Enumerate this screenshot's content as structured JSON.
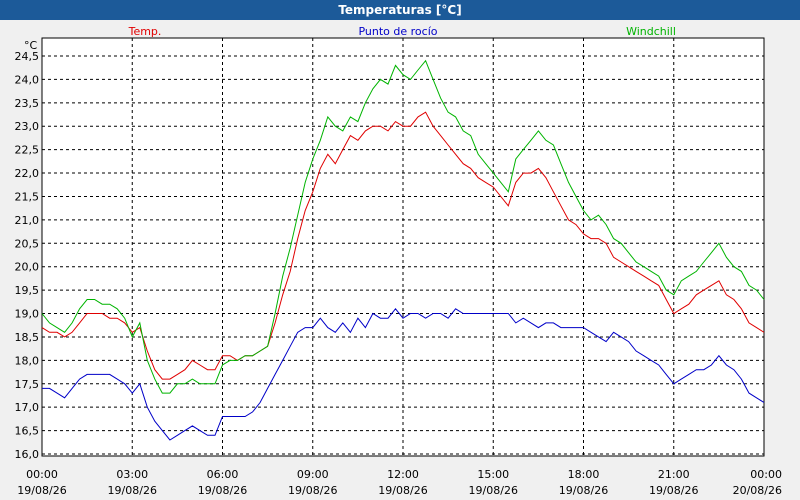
{
  "window": {
    "title": "Temperaturas [°C]"
  },
  "chart_data": {
    "type": "line",
    "title": "Temperaturas [°C]",
    "unit_label": "°C",
    "ylim": [
      16.0,
      24.5
    ],
    "yticks": [
      "24,5",
      "24,0",
      "23,5",
      "23,0",
      "22,5",
      "22,0",
      "21,5",
      "21,0",
      "20,5",
      "20,0",
      "19,5",
      "19,0",
      "18,5",
      "18,0",
      "17,5",
      "17,0",
      "16,5",
      "16,0"
    ],
    "ytick_values": [
      24.5,
      24.0,
      23.5,
      23.0,
      22.5,
      22.0,
      21.5,
      21.0,
      20.5,
      20.0,
      19.5,
      19.0,
      18.5,
      18.0,
      17.5,
      17.0,
      16.5,
      16.0
    ],
    "xlim": [
      0,
      24
    ],
    "xticks": [
      {
        "hour": 0,
        "time": "00:00",
        "date": "19/08/26"
      },
      {
        "hour": 3,
        "time": "03:00",
        "date": "19/08/26"
      },
      {
        "hour": 6,
        "time": "06:00",
        "date": "19/08/26"
      },
      {
        "hour": 9,
        "time": "09:00",
        "date": "19/08/26"
      },
      {
        "hour": 12,
        "time": "12:00",
        "date": "19/08/26"
      },
      {
        "hour": 15,
        "time": "15:00",
        "date": "19/08/26"
      },
      {
        "hour": 18,
        "time": "18:00",
        "date": "19/08/26"
      },
      {
        "hour": 21,
        "time": "21:00",
        "date": "19/08/26"
      },
      {
        "hour": 24,
        "time": "00:00",
        "date": "20/08/26"
      }
    ],
    "grid": true,
    "legend_position": "top",
    "series": [
      {
        "name": "Temp.",
        "color": "#e00000",
        "x": [
          0,
          0.25,
          0.5,
          0.75,
          1.0,
          1.25,
          1.5,
          1.75,
          2.0,
          2.25,
          2.5,
          2.75,
          3.0,
          3.25,
          3.5,
          3.75,
          4.0,
          4.25,
          4.5,
          4.75,
          5.0,
          5.25,
          5.5,
          5.75,
          6.0,
          6.25,
          6.5,
          6.75,
          7.0,
          7.25,
          7.5,
          7.75,
          8.0,
          8.25,
          8.5,
          8.75,
          9.0,
          9.25,
          9.5,
          9.75,
          10.0,
          10.25,
          10.5,
          10.75,
          11.0,
          11.25,
          11.5,
          11.75,
          12.0,
          12.25,
          12.5,
          12.75,
          13.0,
          13.25,
          13.5,
          13.75,
          14.0,
          14.25,
          14.5,
          14.75,
          15.0,
          15.25,
          15.5,
          15.75,
          16.0,
          16.25,
          16.5,
          16.75,
          17.0,
          17.25,
          17.5,
          17.75,
          18.0,
          18.25,
          18.5,
          18.75,
          19.0,
          19.25,
          19.5,
          19.75,
          20.0,
          20.25,
          20.5,
          20.75,
          21.0,
          21.25,
          21.5,
          21.75,
          22.0,
          22.25,
          22.5,
          22.75,
          23.0,
          23.25,
          23.5,
          23.75,
          24.0
        ],
        "values": [
          18.7,
          18.6,
          18.6,
          18.5,
          18.6,
          18.8,
          19.0,
          19.0,
          19.0,
          18.9,
          18.9,
          18.8,
          18.6,
          18.7,
          18.2,
          17.8,
          17.6,
          17.6,
          17.7,
          17.8,
          18.0,
          17.9,
          17.8,
          17.8,
          18.1,
          18.1,
          18.0,
          18.1,
          18.1,
          18.2,
          18.3,
          18.8,
          19.4,
          19.9,
          20.6,
          21.2,
          21.6,
          22.1,
          22.4,
          22.2,
          22.5,
          22.8,
          22.7,
          22.9,
          23.0,
          23.0,
          22.9,
          23.1,
          23.0,
          23.0,
          23.2,
          23.3,
          23.0,
          22.8,
          22.6,
          22.4,
          22.2,
          22.1,
          21.9,
          21.8,
          21.7,
          21.5,
          21.3,
          21.8,
          22.0,
          22.0,
          22.1,
          21.9,
          21.6,
          21.3,
          21.0,
          20.9,
          20.7,
          20.6,
          20.6,
          20.5,
          20.2,
          20.1,
          20.0,
          19.9,
          19.8,
          19.7,
          19.6,
          19.3,
          19.0,
          19.1,
          19.2,
          19.4,
          19.5,
          19.6,
          19.7,
          19.4,
          19.3,
          19.1,
          18.8,
          18.7,
          18.6
        ]
      },
      {
        "name": "Punto de rocío",
        "color": "#0000c8",
        "x": [
          0,
          0.25,
          0.5,
          0.75,
          1.0,
          1.25,
          1.5,
          1.75,
          2.0,
          2.25,
          2.5,
          2.75,
          3.0,
          3.25,
          3.5,
          3.75,
          4.0,
          4.25,
          4.5,
          4.75,
          5.0,
          5.25,
          5.5,
          5.75,
          6.0,
          6.25,
          6.5,
          6.75,
          7.0,
          7.25,
          7.5,
          7.75,
          8.0,
          8.25,
          8.5,
          8.75,
          9.0,
          9.25,
          9.5,
          9.75,
          10.0,
          10.25,
          10.5,
          10.75,
          11.0,
          11.25,
          11.5,
          11.75,
          12.0,
          12.25,
          12.5,
          12.75,
          13.0,
          13.25,
          13.5,
          13.75,
          14.0,
          14.25,
          14.5,
          14.75,
          15.0,
          15.25,
          15.5,
          15.75,
          16.0,
          16.25,
          16.5,
          16.75,
          17.0,
          17.25,
          17.5,
          17.75,
          18.0,
          18.25,
          18.5,
          18.75,
          19.0,
          19.25,
          19.5,
          19.75,
          20.0,
          20.25,
          20.5,
          20.75,
          21.0,
          21.25,
          21.5,
          21.75,
          22.0,
          22.25,
          22.5,
          22.75,
          23.0,
          23.25,
          23.5,
          23.75,
          24.0
        ],
        "values": [
          17.4,
          17.4,
          17.3,
          17.2,
          17.4,
          17.6,
          17.7,
          17.7,
          17.7,
          17.7,
          17.6,
          17.5,
          17.3,
          17.5,
          17.0,
          16.7,
          16.5,
          16.3,
          16.4,
          16.5,
          16.6,
          16.5,
          16.4,
          16.4,
          16.8,
          16.8,
          16.8,
          16.8,
          16.9,
          17.1,
          17.4,
          17.7,
          18.0,
          18.3,
          18.6,
          18.7,
          18.7,
          18.9,
          18.7,
          18.6,
          18.8,
          18.6,
          18.9,
          18.7,
          19.0,
          18.9,
          18.9,
          19.1,
          18.9,
          19.0,
          19.0,
          18.9,
          19.0,
          19.0,
          18.9,
          19.1,
          19.0,
          19.0,
          19.0,
          19.0,
          19.0,
          19.0,
          19.0,
          18.8,
          18.9,
          18.8,
          18.7,
          18.8,
          18.8,
          18.7,
          18.7,
          18.7,
          18.7,
          18.6,
          18.5,
          18.4,
          18.6,
          18.5,
          18.4,
          18.2,
          18.1,
          18.0,
          17.9,
          17.7,
          17.5,
          17.6,
          17.7,
          17.8,
          17.8,
          17.9,
          18.1,
          17.9,
          17.8,
          17.6,
          17.3,
          17.2,
          17.1
        ]
      },
      {
        "name": "Windchill",
        "color": "#00b400",
        "x": [
          0,
          0.25,
          0.5,
          0.75,
          1.0,
          1.25,
          1.5,
          1.75,
          2.0,
          2.25,
          2.5,
          2.75,
          3.0,
          3.25,
          3.5,
          3.75,
          4.0,
          4.25,
          4.5,
          4.75,
          5.0,
          5.25,
          5.5,
          5.75,
          6.0,
          6.25,
          6.5,
          6.75,
          7.0,
          7.25,
          7.5,
          7.75,
          8.0,
          8.25,
          8.5,
          8.75,
          9.0,
          9.25,
          9.5,
          9.75,
          10.0,
          10.25,
          10.5,
          10.75,
          11.0,
          11.25,
          11.5,
          11.75,
          12.0,
          12.25,
          12.5,
          12.75,
          13.0,
          13.25,
          13.5,
          13.75,
          14.0,
          14.25,
          14.5,
          14.75,
          15.0,
          15.25,
          15.5,
          15.75,
          16.0,
          16.25,
          16.5,
          16.75,
          17.0,
          17.25,
          17.5,
          17.75,
          18.0,
          18.25,
          18.5,
          18.75,
          19.0,
          19.25,
          19.5,
          19.75,
          20.0,
          20.25,
          20.5,
          20.75,
          21.0,
          21.25,
          21.5,
          21.75,
          22.0,
          22.25,
          22.5,
          22.75,
          23.0,
          23.25,
          23.5,
          23.75,
          24.0
        ],
        "values": [
          19.0,
          18.8,
          18.7,
          18.6,
          18.8,
          19.1,
          19.3,
          19.3,
          19.2,
          19.2,
          19.1,
          18.9,
          18.5,
          18.8,
          18.0,
          17.6,
          17.3,
          17.3,
          17.5,
          17.5,
          17.6,
          17.5,
          17.5,
          17.5,
          17.9,
          18.0,
          18.0,
          18.1,
          18.1,
          18.2,
          18.3,
          19.0,
          19.8,
          20.4,
          21.1,
          21.8,
          22.3,
          22.7,
          23.2,
          23.0,
          22.9,
          23.2,
          23.1,
          23.5,
          23.8,
          24.0,
          23.9,
          24.3,
          24.1,
          24.0,
          24.2,
          24.4,
          24.0,
          23.6,
          23.3,
          23.2,
          22.9,
          22.8,
          22.4,
          22.2,
          22.0,
          21.8,
          21.6,
          22.3,
          22.5,
          22.7,
          22.9,
          22.7,
          22.6,
          22.2,
          21.8,
          21.5,
          21.2,
          21.0,
          21.1,
          20.9,
          20.6,
          20.5,
          20.3,
          20.1,
          20.0,
          19.9,
          19.8,
          19.5,
          19.4,
          19.7,
          19.8,
          19.9,
          20.1,
          20.3,
          20.5,
          20.2,
          20.0,
          19.9,
          19.6,
          19.5,
          19.3
        ]
      }
    ]
  }
}
